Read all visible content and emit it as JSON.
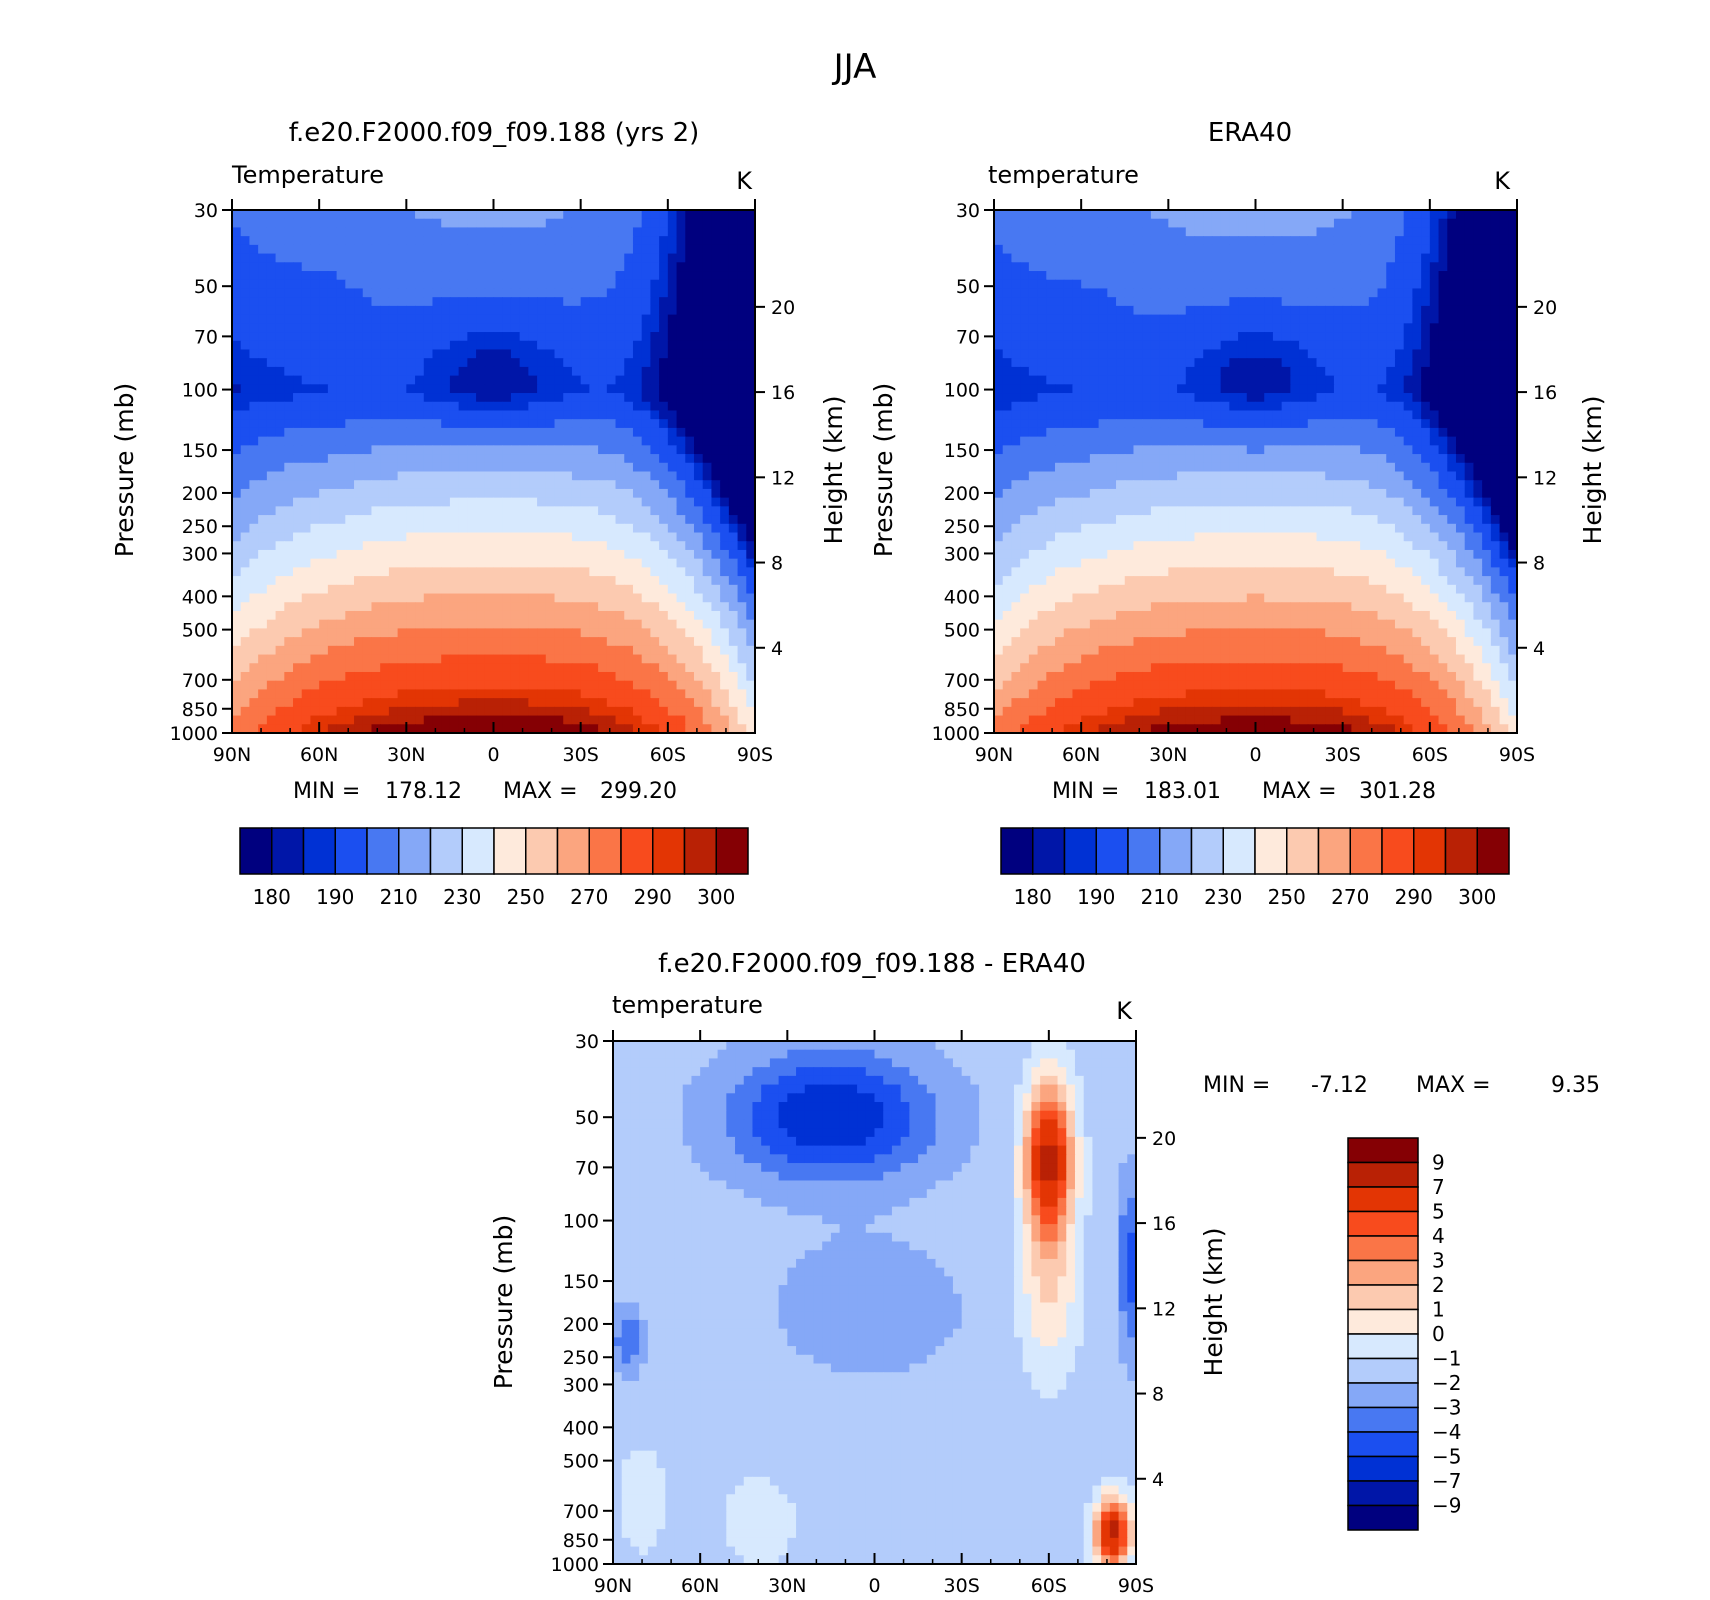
{
  "figure": {
    "title": "JJA"
  },
  "palettes": {
    "abs": [
      "#00007f",
      "#0016a8",
      "#0031d4",
      "#1b4ff0",
      "#4878f2",
      "#85a8f7",
      "#b3ccfb",
      "#d7e9fe",
      "#feeadc",
      "#fccab0",
      "#fba57f",
      "#fa7547",
      "#f84b1d",
      "#e33504",
      "#b92105",
      "#850004"
    ],
    "diff": [
      "#00007f",
      "#0016a8",
      "#0031d4",
      "#1b4ff0",
      "#4878f2",
      "#85a8f7",
      "#b3ccfb",
      "#d7e9fe",
      "#feeadc",
      "#fccab0",
      "#fba57f",
      "#fa7547",
      "#f84b1d",
      "#e33504",
      "#b92105",
      "#850004"
    ]
  },
  "chart_data": [
    {
      "type": "heatmap",
      "title": "f.e20.F2000.f09_f09.188 (yrs 2)",
      "variable": "Temperature",
      "units": "K",
      "xlabel": "",
      "ylabel": "Pressure (mb)",
      "y2label": "Height (km)",
      "x_ticks": [
        "90N",
        "60N",
        "30N",
        "0",
        "30S",
        "60S",
        "90S"
      ],
      "y_ticks": [
        "30",
        "50",
        "70",
        "100",
        "150",
        "200",
        "250",
        "300",
        "400",
        "500",
        "700",
        "850",
        "1000"
      ],
      "y2_ticks": [
        "20",
        "16",
        "12",
        "8",
        "4"
      ],
      "min_label": "MIN =",
      "min": "178.12",
      "max_label": "MAX =",
      "max": "299.20",
      "contour_levels": [
        180,
        185,
        190,
        200,
        210,
        220,
        230,
        240,
        250,
        260,
        270,
        280,
        290,
        295,
        300
      ],
      "colorbar_labels": [
        "180",
        "190",
        "210",
        "230",
        "250",
        "270",
        "290",
        "300"
      ],
      "field": "abs_model"
    },
    {
      "type": "heatmap",
      "title": "ERA40",
      "variable": "temperature",
      "units": "K",
      "xlabel": "",
      "ylabel": "Pressure (mb)",
      "y2label": "Height (km)",
      "x_ticks": [
        "90N",
        "60N",
        "30N",
        "0",
        "30S",
        "60S",
        "90S"
      ],
      "y_ticks": [
        "30",
        "50",
        "70",
        "100",
        "150",
        "200",
        "250",
        "300",
        "400",
        "500",
        "700",
        "850",
        "1000"
      ],
      "y2_ticks": [
        "20",
        "16",
        "12",
        "8",
        "4"
      ],
      "min_label": "MIN =",
      "min": "183.01",
      "max_label": "MAX =",
      "max": "301.28",
      "contour_levels": [
        180,
        185,
        190,
        200,
        210,
        220,
        230,
        240,
        250,
        260,
        270,
        280,
        290,
        295,
        300
      ],
      "colorbar_labels": [
        "180",
        "190",
        "210",
        "230",
        "250",
        "270",
        "290",
        "300"
      ],
      "field": "abs_obs"
    },
    {
      "type": "heatmap",
      "title": "f.e20.F2000.f09_f09.188 - ERA40",
      "variable": "temperature",
      "units": "K",
      "xlabel": "",
      "ylabel": "Pressure (mb)",
      "y2label": "Height (km)",
      "x_ticks": [
        "90N",
        "60N",
        "30N",
        "0",
        "30S",
        "60S",
        "90S"
      ],
      "y_ticks": [
        "30",
        "50",
        "70",
        "100",
        "150",
        "200",
        "250",
        "300",
        "400",
        "500",
        "700",
        "850",
        "1000"
      ],
      "y2_ticks": [
        "20",
        "16",
        "12",
        "8",
        "4"
      ],
      "min_label": "MIN =",
      "min": "-7.12",
      "max_label": "MAX =",
      "max": "9.35",
      "contour_levels": [
        -9,
        -7,
        -5,
        -4,
        -3,
        -2,
        -1,
        0,
        1,
        2,
        3,
        4,
        5,
        7,
        9
      ],
      "colorbar_labels": [
        "9",
        "7",
        "5",
        "4",
        "3",
        "2",
        "1",
        "0",
        "-1",
        "-2",
        "-3",
        "-4",
        "-5",
        "-7",
        "-9"
      ],
      "field": "diff"
    }
  ]
}
